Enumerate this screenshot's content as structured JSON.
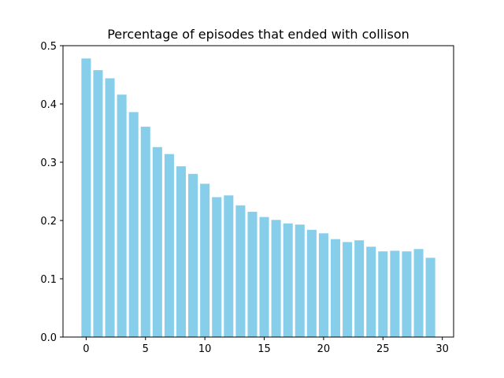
{
  "chart_data": {
    "type": "bar",
    "title": "Percentage of episodes that ended with collison",
    "xlabel": "",
    "ylabel": "",
    "x": [
      0,
      1,
      2,
      3,
      4,
      5,
      6,
      7,
      8,
      9,
      10,
      11,
      12,
      13,
      14,
      15,
      16,
      17,
      18,
      19,
      20,
      21,
      22,
      23,
      24,
      25,
      26,
      27,
      28,
      29
    ],
    "values": [
      0.478,
      0.458,
      0.444,
      0.416,
      0.386,
      0.361,
      0.326,
      0.314,
      0.293,
      0.28,
      0.263,
      0.24,
      0.243,
      0.226,
      0.215,
      0.206,
      0.201,
      0.195,
      0.193,
      0.184,
      0.178,
      0.168,
      0.163,
      0.166,
      0.155,
      0.147,
      0.148,
      0.147,
      0.151,
      0.136
    ],
    "xlim": [
      -1.95,
      30.95
    ],
    "ylim": [
      0,
      0.5
    ],
    "xticks": [
      0,
      5,
      10,
      15,
      20,
      25,
      30
    ],
    "xtick_labels": [
      "0",
      "5",
      "10",
      "15",
      "20",
      "25",
      "30"
    ],
    "yticks": [
      0.0,
      0.1,
      0.2,
      0.3,
      0.4,
      0.5
    ],
    "ytick_labels": [
      "0.0",
      "0.1",
      "0.2",
      "0.3",
      "0.4",
      "0.5"
    ],
    "bar_color": "#87ceeb",
    "grid": false,
    "legend": "none"
  }
}
